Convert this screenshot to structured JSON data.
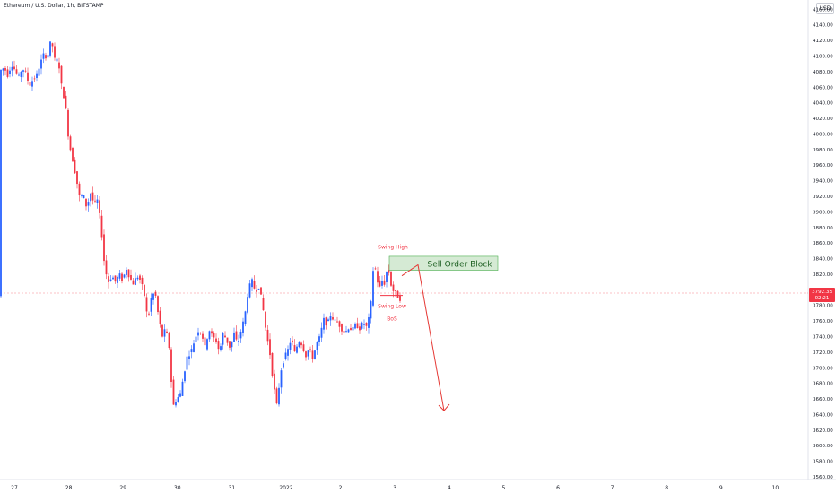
{
  "chart": {
    "title": "Ethereum / U.S. Dollar, 1h, BITSTAMP",
    "currency_label": "USD",
    "last_price": "3792.35",
    "countdown": "02:21",
    "colors": {
      "up": "#2962ff",
      "down": "#f23645",
      "price_line": "#f23645",
      "zone_fill": "#d5ead4",
      "zone_border": "#4caf50",
      "annotation": "#f23645",
      "arrow": "#e53935"
    }
  },
  "chart_data": {
    "type": "candlestick",
    "title": "Ethereum / U.S. Dollar, 1h, BITSTAMP",
    "x_tick_labels": [
      "27",
      "28",
      "29",
      "30",
      "31",
      "2022",
      "2",
      "3",
      "4",
      "5",
      "6",
      "7",
      "8",
      "9",
      "10"
    ],
    "y_tick_labels": [
      "4160.00",
      "4140.00",
      "4120.00",
      "4100.00",
      "4080.00",
      "4060.00",
      "4040.00",
      "4020.00",
      "4000.00",
      "3980.00",
      "3960.00",
      "3940.00",
      "3920.00",
      "3900.00",
      "3880.00",
      "3860.00",
      "3840.00",
      "3820.00",
      "3800.00",
      "3780.00",
      "3760.00",
      "3740.00",
      "3720.00",
      "3700.00",
      "3680.00",
      "3660.00",
      "3640.00",
      "3620.00",
      "3600.00",
      "3580.00",
      "3560.00"
    ],
    "ylim": [
      3560,
      4165
    ],
    "grid": false,
    "path_points": [
      [
        0,
        4080
      ],
      [
        6,
        4085
      ],
      [
        10,
        4075
      ],
      [
        14,
        4090
      ],
      [
        18,
        4082
      ],
      [
        22,
        4072
      ],
      [
        26,
        4085
      ],
      [
        30,
        4078
      ],
      [
        34,
        4062
      ],
      [
        38,
        4070
      ],
      [
        42,
        4075
      ],
      [
        46,
        4090
      ],
      [
        50,
        4102
      ],
      [
        54,
        4098
      ],
      [
        58,
        4120
      ],
      [
        60,
        4112
      ],
      [
        63,
        4090
      ],
      [
        66,
        4098
      ],
      [
        70,
        4060
      ],
      [
        74,
        4040
      ],
      [
        78,
        3990
      ],
      [
        82,
        3968
      ],
      [
        86,
        3945
      ],
      [
        90,
        3918
      ],
      [
        94,
        3922
      ],
      [
        98,
        3905
      ],
      [
        102,
        3925
      ],
      [
        106,
        3910
      ],
      [
        110,
        3915
      ],
      [
        114,
        3880
      ],
      [
        118,
        3828
      ],
      [
        122,
        3810
      ],
      [
        126,
        3818
      ],
      [
        130,
        3810
      ],
      [
        134,
        3820
      ],
      [
        138,
        3812
      ],
      [
        142,
        3828
      ],
      [
        146,
        3815
      ],
      [
        150,
        3808
      ],
      [
        154,
        3818
      ],
      [
        158,
        3812
      ],
      [
        162,
        3795
      ],
      [
        166,
        3760
      ],
      [
        170,
        3790
      ],
      [
        174,
        3798
      ],
      [
        178,
        3765
      ],
      [
        182,
        3740
      ],
      [
        186,
        3750
      ],
      [
        190,
        3725
      ],
      [
        194,
        3650
      ],
      [
        198,
        3660
      ],
      [
        202,
        3665
      ],
      [
        206,
        3690
      ],
      [
        210,
        3715
      ],
      [
        214,
        3720
      ],
      [
        218,
        3735
      ],
      [
        222,
        3748
      ],
      [
        226,
        3745
      ],
      [
        230,
        3725
      ],
      [
        234,
        3750
      ],
      [
        238,
        3740
      ],
      [
        242,
        3735
      ],
      [
        246,
        3720
      ],
      [
        250,
        3745
      ],
      [
        254,
        3735
      ],
      [
        258,
        3725
      ],
      [
        262,
        3745
      ],
      [
        266,
        3730
      ],
      [
        270,
        3748
      ],
      [
        274,
        3765
      ],
      [
        278,
        3800
      ],
      [
        282,
        3812
      ],
      [
        286,
        3798
      ],
      [
        290,
        3805
      ],
      [
        294,
        3780
      ],
      [
        298,
        3745
      ],
      [
        302,
        3720
      ],
      [
        306,
        3680
      ],
      [
        310,
        3650
      ],
      [
        314,
        3695
      ],
      [
        318,
        3712
      ],
      [
        322,
        3722
      ],
      [
        326,
        3738
      ],
      [
        330,
        3718
      ],
      [
        334,
        3735
      ],
      [
        338,
        3730
      ],
      [
        342,
        3715
      ],
      [
        346,
        3725
      ],
      [
        350,
        3712
      ],
      [
        354,
        3730
      ],
      [
        358,
        3740
      ],
      [
        362,
        3762
      ],
      [
        366,
        3755
      ],
      [
        370,
        3768
      ],
      [
        374,
        3760
      ],
      [
        378,
        3758
      ],
      [
        382,
        3750
      ],
      [
        386,
        3745
      ],
      [
        390,
        3752
      ],
      [
        394,
        3748
      ],
      [
        398,
        3756
      ],
      [
        402,
        3750
      ],
      [
        406,
        3758
      ],
      [
        410,
        3752
      ],
      [
        414,
        3770
      ],
      [
        418,
        3838
      ],
      [
        421,
        3818
      ],
      [
        424,
        3800
      ],
      [
        427,
        3812
      ],
      [
        430,
        3808
      ],
      [
        433,
        3828
      ],
      [
        436,
        3818
      ],
      [
        438,
        3800
      ],
      [
        441,
        3798
      ],
      [
        444,
        3792
      ],
      [
        447,
        3788
      ],
      [
        449,
        3792
      ]
    ],
    "annotations": {
      "swing_high": "Swing High",
      "swing_low": "Swing Low",
      "bos": "BoS",
      "sell_order_block": "Sell Order Block"
    },
    "sell_order_block_range": [
      3825,
      3843
    ],
    "projection": [
      [
        3,
        3818
      ],
      [
        3.45,
        3832
      ],
      [
        4,
        3645
      ]
    ],
    "bos_level": 3795
  }
}
